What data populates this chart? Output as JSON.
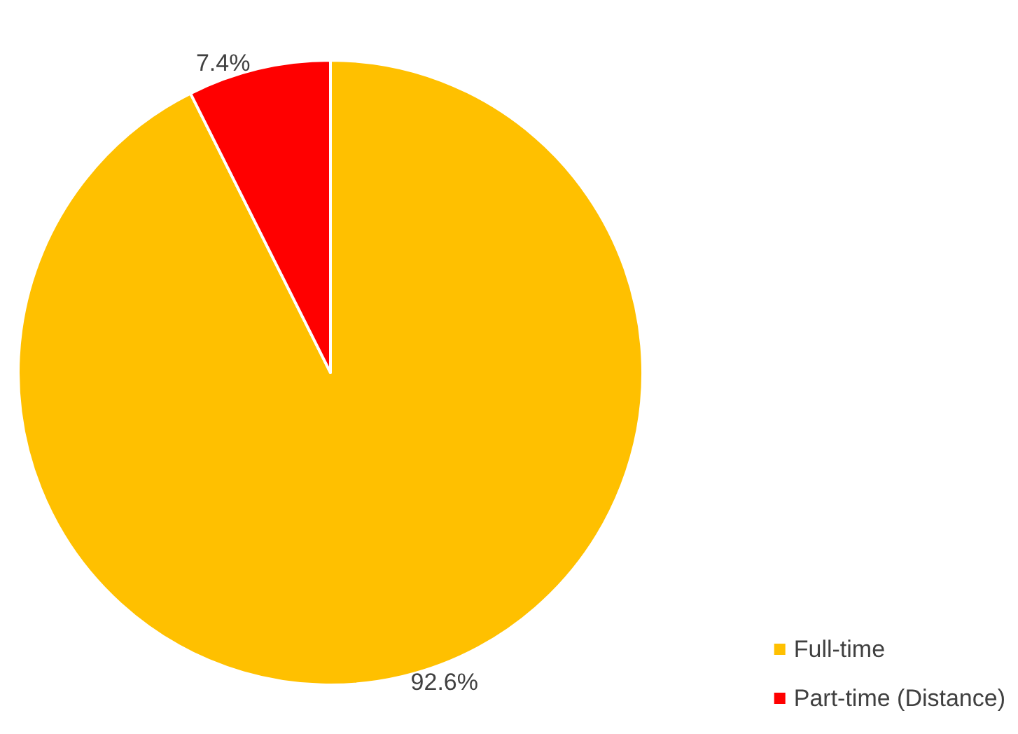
{
  "chart_data": {
    "type": "pie",
    "categories": [
      "Full-time",
      "Part-time (Distance)"
    ],
    "values": [
      92.6,
      7.4
    ],
    "colors": [
      "#ffc000",
      "#ff0000"
    ],
    "value_labels": [
      "92.6%",
      "7.4%"
    ],
    "legend": "bottom right"
  }
}
